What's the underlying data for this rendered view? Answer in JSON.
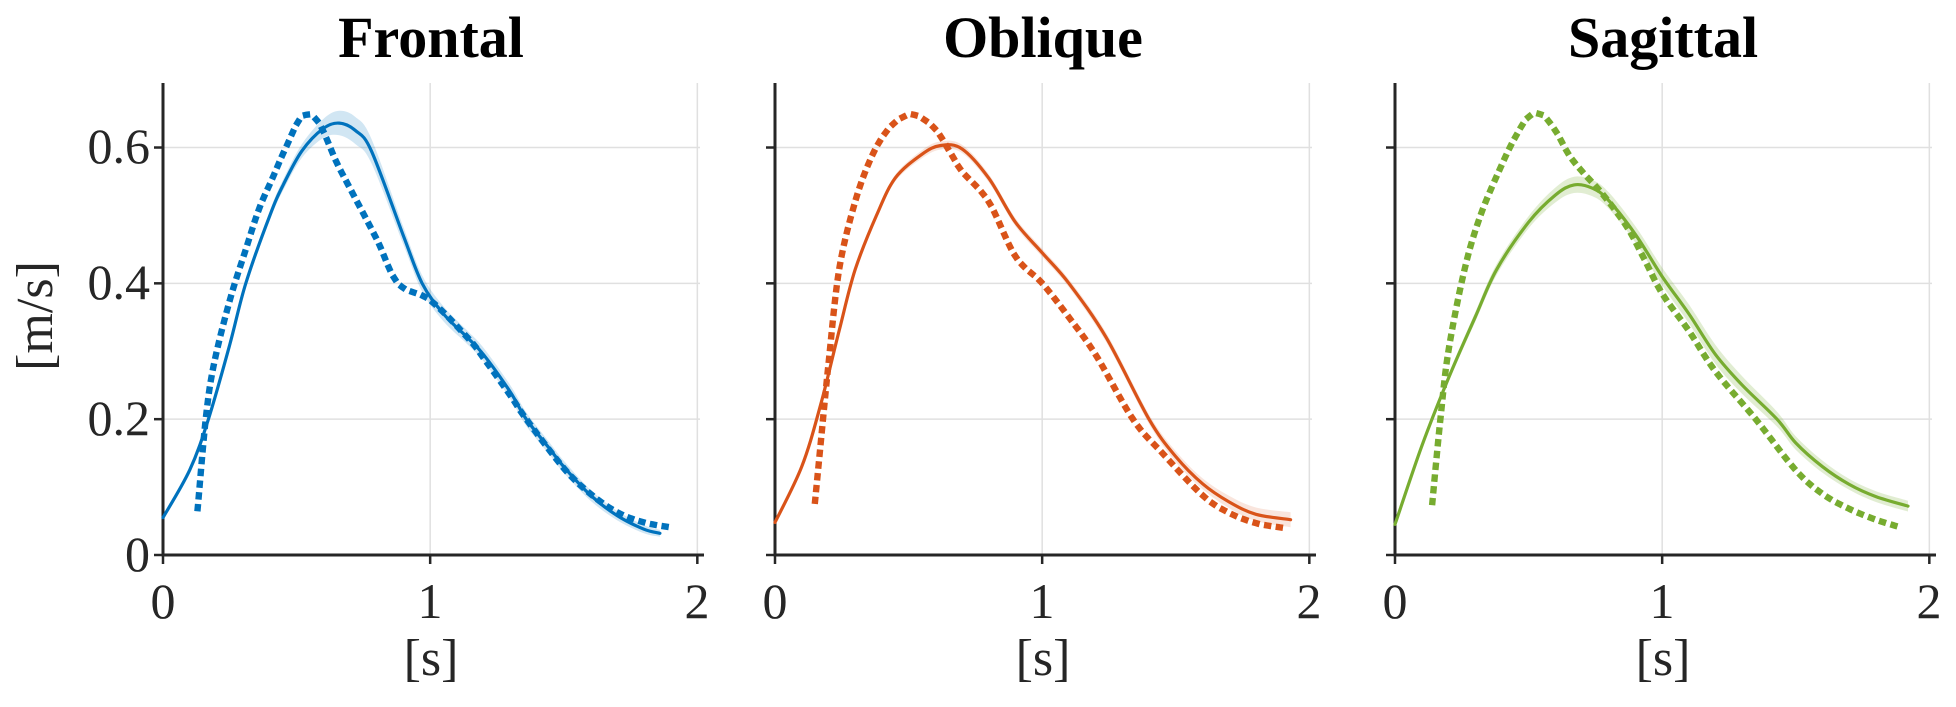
{
  "figure": {
    "background": "#ffffff",
    "axis_color": "#262626",
    "grid_color": "#e0e0e0"
  },
  "chart_data": {
    "type": "line",
    "layout": {
      "xlabel": "[s]",
      "ylabel": "[m/s]",
      "xlim": [
        0,
        2.01
      ],
      "ylim": [
        0,
        0.695
      ],
      "xticks": [
        0,
        1,
        2
      ],
      "yticks": [
        0,
        0.2,
        0.4,
        0.6
      ],
      "xtick_labels": [
        "0",
        "1",
        "2"
      ],
      "ytick_labels": [
        "0",
        "0.2",
        "0.4",
        "0.6"
      ],
      "grid": true,
      "legend": "none"
    },
    "panels": [
      {
        "title": "Frontal",
        "color": "#0072BD",
        "band_color": "rgba(0,114,189,0.18)",
        "series": [
          {
            "name": "solid-line-mean",
            "style": "solid",
            "t": [
              0,
              0.1,
              0.17,
              0.25,
              0.31,
              0.4,
              0.45,
              0.52,
              0.6,
              0.66,
              0.72,
              0.78,
              0.9,
              0.97,
              1.05,
              1.14,
              1.2,
              1.3,
              1.36,
              1.45,
              1.5,
              1.6,
              1.7,
              1.8,
              1.86
            ],
            "v": [
              0.055,
              0.125,
              0.2,
              0.31,
              0.4,
              0.5,
              0.545,
              0.595,
              0.628,
              0.636,
              0.625,
              0.595,
              0.47,
              0.4,
              0.355,
              0.32,
              0.295,
              0.24,
              0.2,
              0.155,
              0.13,
              0.088,
              0.058,
              0.038,
              0.032
            ],
            "band": [
              0.003,
              0.004,
              0.004,
              0.005,
              0.006,
              0.007,
              0.008,
              0.01,
              0.014,
              0.018,
              0.02,
              0.018,
              0.013,
              0.012,
              0.011,
              0.01,
              0.01,
              0.01,
              0.01,
              0.009,
              0.009,
              0.008,
              0.007,
              0.006,
              0.005
            ]
          },
          {
            "name": "dotted-line-reference",
            "style": "dotted",
            "t": [
              0.13,
              0.16,
              0.19,
              0.25,
              0.31,
              0.36,
              0.41,
              0.46,
              0.52,
              0.58,
              0.65,
              0.7,
              0.8,
              0.88,
              1.0,
              1.14,
              1.2,
              1.3,
              1.36,
              1.5,
              1.6,
              1.7,
              1.8,
              1.91
            ],
            "v": [
              0.069,
              0.2,
              0.28,
              0.375,
              0.45,
              0.51,
              0.555,
              0.6,
              0.645,
              0.638,
              0.578,
              0.54,
              0.465,
              0.4,
              0.375,
              0.32,
              0.29,
              0.235,
              0.2,
              0.128,
              0.09,
              0.063,
              0.048,
              0.04
            ]
          }
        ]
      },
      {
        "title": "Oblique",
        "color": "#D95319",
        "band_color": "rgba(217,83,25,0.15)",
        "series": [
          {
            "name": "solid-line-mean",
            "style": "solid",
            "t": [
              0,
              0.1,
              0.17,
              0.24,
              0.3,
              0.38,
              0.45,
              0.55,
              0.62,
              0.7,
              0.8,
              0.9,
              1.0,
              1.1,
              1.24,
              1.4,
              1.5,
              1.6,
              1.7,
              1.8,
              1.93
            ],
            "v": [
              0.048,
              0.13,
              0.22,
              0.33,
              0.42,
              0.5,
              0.555,
              0.59,
              0.603,
              0.598,
              0.555,
              0.49,
              0.445,
              0.4,
              0.32,
              0.2,
              0.145,
              0.105,
              0.078,
              0.06,
              0.052
            ],
            "band": [
              0.003,
              0.004,
              0.004,
              0.004,
              0.005,
              0.005,
              0.005,
              0.006,
              0.006,
              0.006,
              0.006,
              0.006,
              0.006,
              0.006,
              0.007,
              0.007,
              0.008,
              0.008,
              0.009,
              0.01,
              0.011
            ]
          },
          {
            "name": "dotted-line-reference",
            "style": "dotted",
            "t": [
              0.15,
              0.17,
              0.2,
              0.24,
              0.3,
              0.36,
              0.42,
              0.48,
              0.53,
              0.6,
              0.66,
              0.7,
              0.8,
              0.9,
              1.0,
              1.1,
              1.2,
              1.34,
              1.45,
              1.6,
              1.7,
              1.8,
              1.9
            ],
            "v": [
              0.08,
              0.16,
              0.28,
              0.42,
              0.52,
              0.585,
              0.625,
              0.645,
              0.647,
              0.627,
              0.59,
              0.565,
              0.52,
              0.44,
              0.4,
              0.35,
              0.295,
              0.2,
              0.15,
              0.088,
              0.062,
              0.047,
              0.04
            ]
          }
        ]
      },
      {
        "title": "Sagittal",
        "color": "#77AC30",
        "band_color": "rgba(119,172,48,0.22)",
        "series": [
          {
            "name": "solid-line-mean",
            "style": "solid",
            "t": [
              0,
              0.1,
              0.2,
              0.3,
              0.38,
              0.5,
              0.6,
              0.67,
              0.74,
              0.8,
              0.9,
              1.0,
              1.1,
              1.2,
              1.3,
              1.43,
              1.5,
              1.6,
              1.7,
              1.8,
              1.92
            ],
            "v": [
              0.045,
              0.16,
              0.26,
              0.35,
              0.42,
              0.49,
              0.53,
              0.545,
              0.54,
              0.522,
              0.472,
              0.41,
              0.355,
              0.295,
              0.25,
              0.2,
              0.165,
              0.13,
              0.104,
              0.086,
              0.072
            ],
            "band": [
              0.003,
              0.005,
              0.006,
              0.007,
              0.008,
              0.009,
              0.011,
              0.012,
              0.012,
              0.012,
              0.012,
              0.013,
              0.014,
              0.014,
              0.013,
              0.011,
              0.01,
              0.009,
              0.008,
              0.008,
              0.008
            ]
          },
          {
            "name": "dotted-line-reference",
            "style": "dotted",
            "t": [
              0.14,
              0.17,
              0.2,
              0.26,
              0.32,
              0.4,
              0.45,
              0.5,
              0.55,
              0.6,
              0.65,
              0.7,
              0.78,
              0.87,
              0.93,
              1.0,
              1.1,
              1.2,
              1.35,
              1.5,
              1.6,
              1.7,
              1.8,
              1.89
            ],
            "v": [
              0.078,
              0.2,
              0.3,
              0.42,
              0.5,
              0.575,
              0.615,
              0.645,
              0.648,
              0.625,
              0.59,
              0.565,
              0.53,
              0.482,
              0.438,
              0.385,
              0.33,
              0.27,
              0.2,
              0.125,
              0.09,
              0.068,
              0.052,
              0.041
            ]
          }
        ]
      }
    ]
  }
}
